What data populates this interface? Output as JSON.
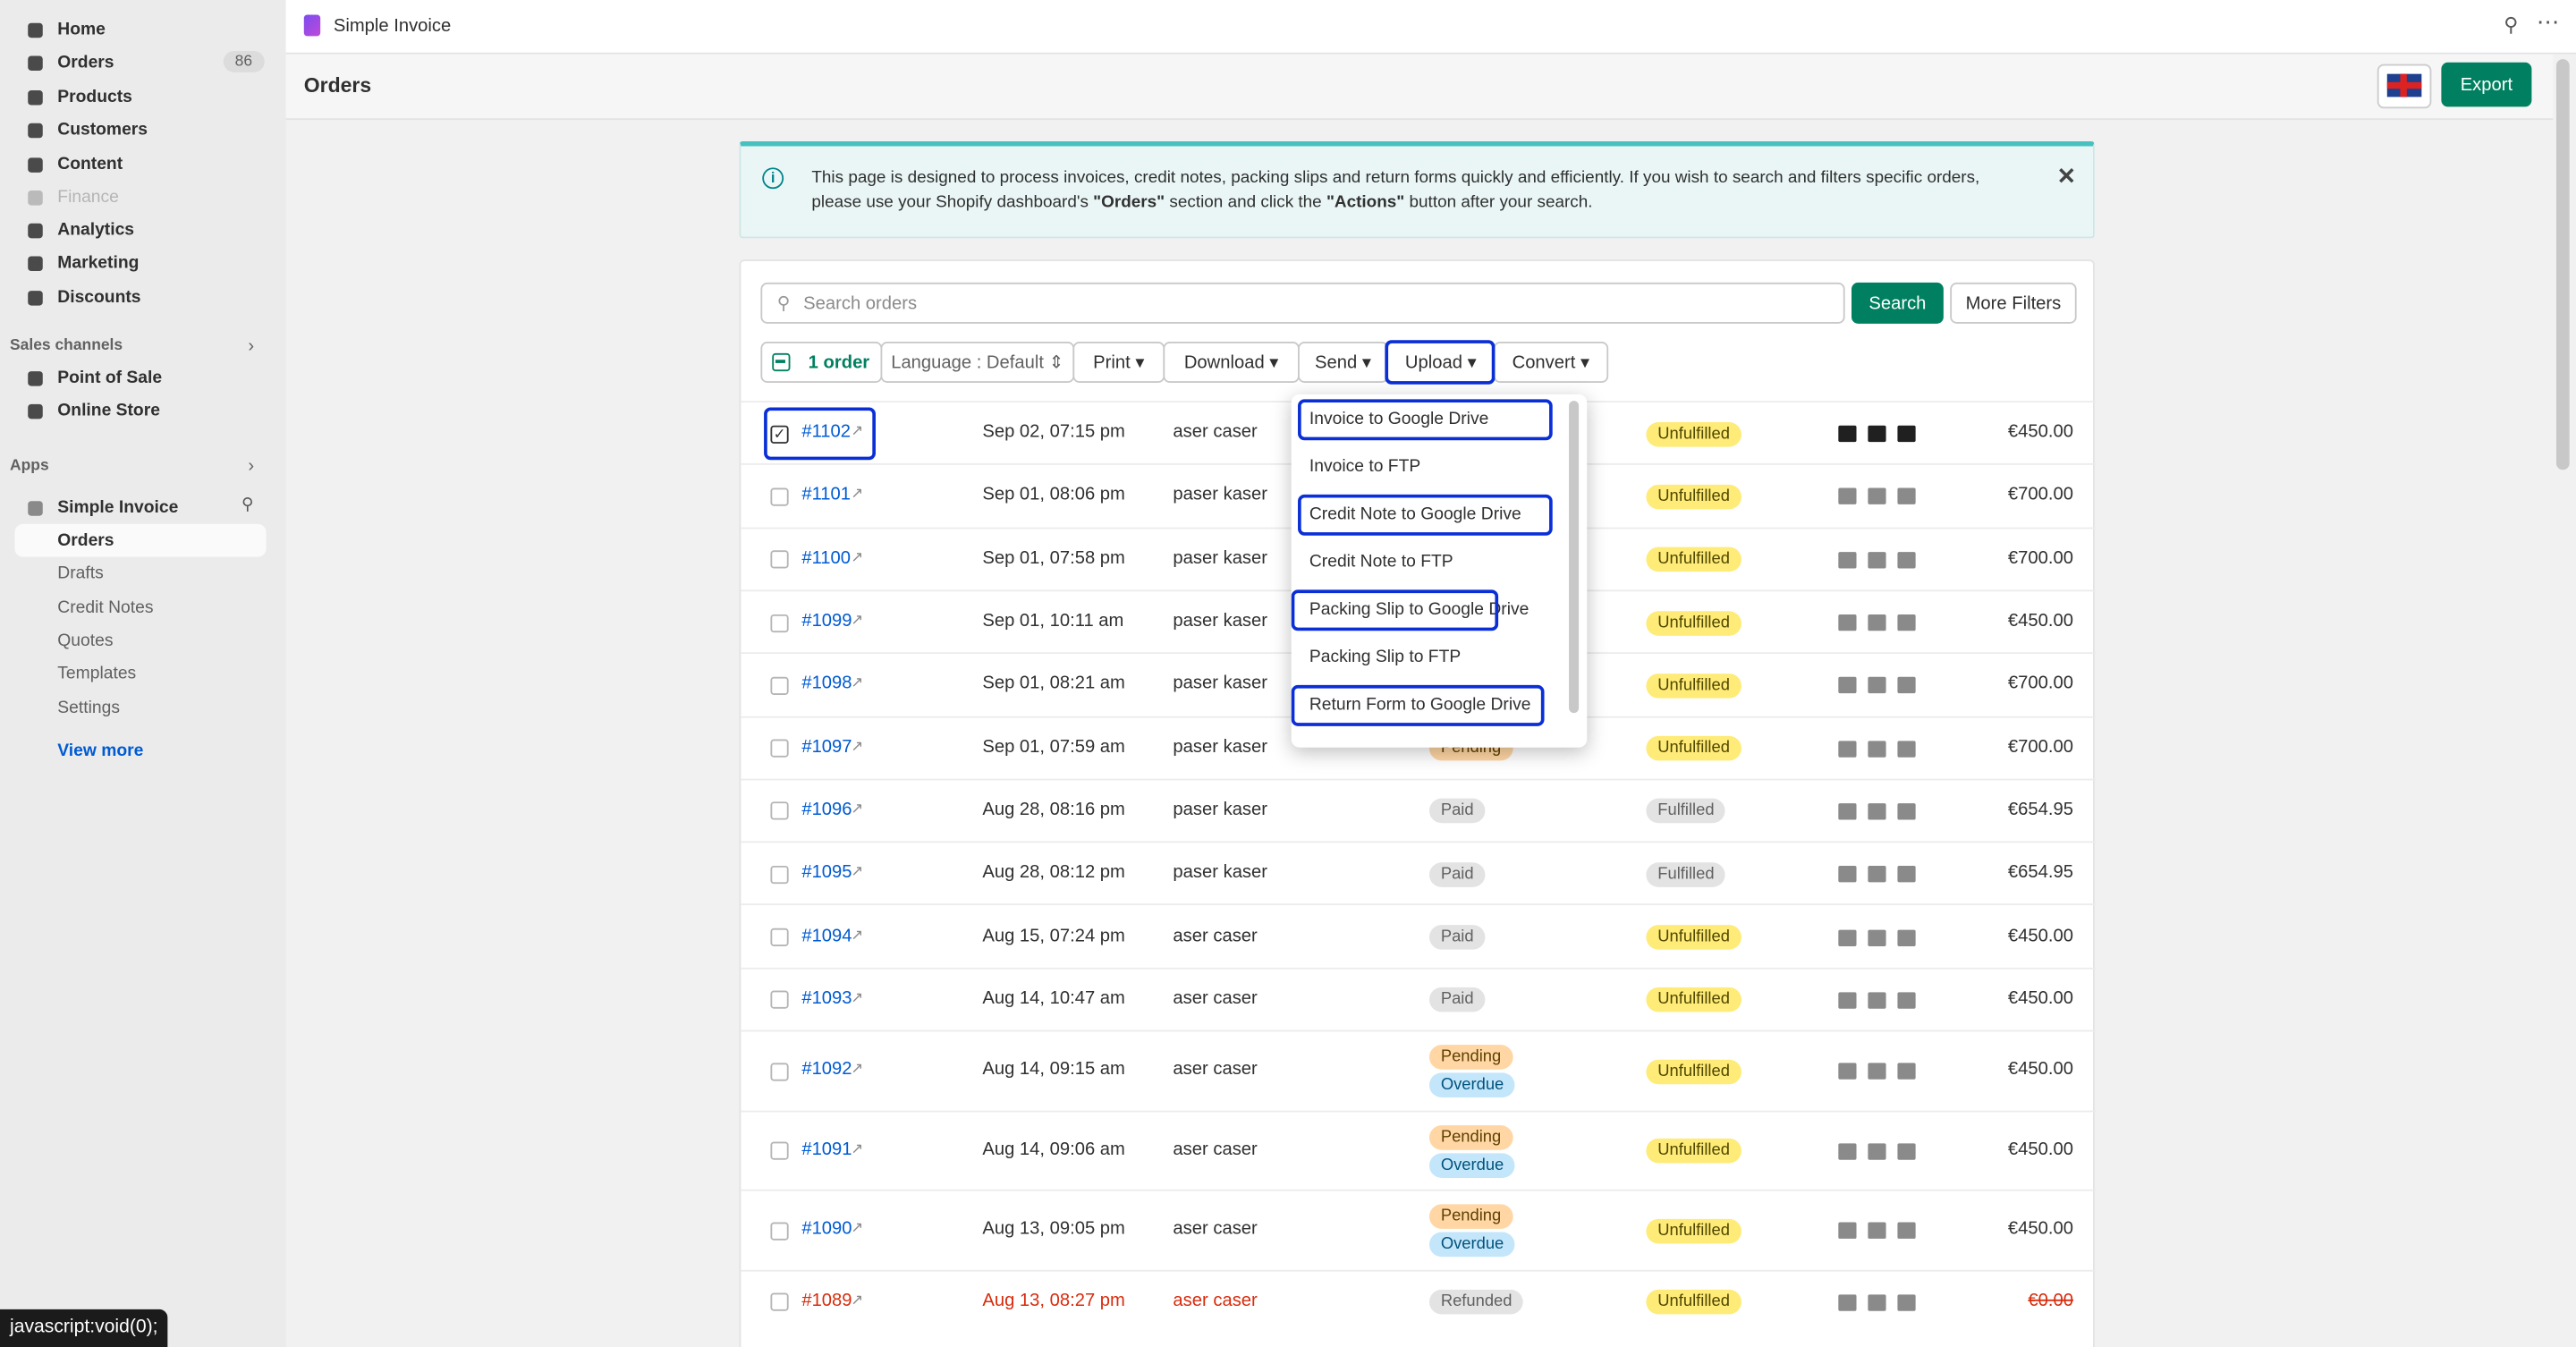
{
  "app": {
    "name": "Simple Invoice"
  },
  "sidebar": {
    "nav": [
      {
        "label": "Home"
      },
      {
        "label": "Orders",
        "badge": 86
      },
      {
        "label": "Products"
      },
      {
        "label": "Customers"
      },
      {
        "label": "Content"
      },
      {
        "label": "Finance"
      },
      {
        "label": "Analytics"
      },
      {
        "label": "Marketing"
      },
      {
        "label": "Discounts"
      }
    ],
    "sales_channels": {
      "title": "Sales channels",
      "items": [
        "Point of Sale",
        "Online Store"
      ]
    },
    "apps": {
      "title": "Apps",
      "app": "Simple Invoice",
      "items": [
        "Orders",
        "Drafts",
        "Credit Notes",
        "Quotes",
        "Templates",
        "Settings"
      ],
      "more": "View more"
    }
  },
  "header": {
    "title": "Orders",
    "export": "Export"
  },
  "banner": {
    "text": "This page is designed to process invoices, credit notes, packing slips and return forms quickly and efficiently. If you wish to search and filters specific orders, please use your Shopify dashboard's ",
    "orders": "\"Orders\"",
    "mid": " section and click the ",
    "actions": "\"Actions\"",
    "end": " button after your search."
  },
  "toolbar": {
    "search_placeholder": "Search orders",
    "search": "Search",
    "more_filters": "More Filters",
    "selected": "1 order",
    "language": "Language : Default",
    "buttons": [
      "Print",
      "Download",
      "Send",
      "Upload",
      "Convert"
    ]
  },
  "upload_menu": [
    "Invoice to Google Drive",
    "Invoice to FTP",
    "Credit Note to Google Drive",
    "Credit Note to FTP",
    "Packing Slip to Google Drive",
    "Packing Slip to FTP",
    "Return Form to Google Drive"
  ],
  "orders": {
    "rows": [
      {
        "id": "#1102",
        "date": "Sep 02, 07:15 pm",
        "customer": "aser caser",
        "payment": [],
        "fulfillment": "Unfulfilled",
        "total": "€450.00"
      },
      {
        "id": "#1101",
        "date": "Sep 01, 08:06 pm",
        "customer": "paser kaser",
        "payment": [],
        "fulfillment": "Unfulfilled",
        "total": "€700.00"
      },
      {
        "id": "#1100",
        "date": "Sep 01, 07:58 pm",
        "customer": "paser kaser",
        "payment": [],
        "fulfillment": "Unfulfilled",
        "total": "€700.00"
      },
      {
        "id": "#1099",
        "date": "Sep 01, 10:11 am",
        "customer": "paser kaser",
        "payment": [],
        "fulfillment": "Unfulfilled",
        "total": "€450.00"
      },
      {
        "id": "#1098",
        "date": "Sep 01, 08:21 am",
        "customer": "paser kaser",
        "payment": [],
        "fulfillment": "Unfulfilled",
        "total": "€700.00"
      },
      {
        "id": "#1097",
        "date": "Sep 01, 07:59 am",
        "customer": "paser kaser",
        "payment": [
          "Pending"
        ],
        "fulfillment": "Unfulfilled",
        "total": "€700.00"
      },
      {
        "id": "#1096",
        "date": "Aug 28, 08:16 pm",
        "customer": "paser kaser",
        "payment": [
          "Paid"
        ],
        "fulfillment": "Fulfilled",
        "total": "€654.95"
      },
      {
        "id": "#1095",
        "date": "Aug 28, 08:12 pm",
        "customer": "paser kaser",
        "payment": [
          "Paid"
        ],
        "fulfillment": "Fulfilled",
        "total": "€654.95"
      },
      {
        "id": "#1094",
        "date": "Aug 15, 07:24 pm",
        "customer": "aser caser",
        "payment": [
          "Paid"
        ],
        "fulfillment": "Unfulfilled",
        "total": "€450.00"
      },
      {
        "id": "#1093",
        "date": "Aug 14, 10:47 am",
        "customer": "aser caser",
        "payment": [
          "Paid"
        ],
        "fulfillment": "Unfulfilled",
        "total": "€450.00"
      },
      {
        "id": "#1092",
        "date": "Aug 14, 09:15 am",
        "customer": "aser caser",
        "payment": [
          "Pending",
          "Overdue"
        ],
        "fulfillment": "Unfulfilled",
        "total": "€450.00"
      },
      {
        "id": "#1091",
        "date": "Aug 14, 09:06 am",
        "customer": "aser caser",
        "payment": [
          "Pending",
          "Overdue"
        ],
        "fulfillment": "Unfulfilled",
        "total": "€450.00"
      },
      {
        "id": "#1090",
        "date": "Aug 13, 09:05 pm",
        "customer": "aser caser",
        "payment": [
          "Pending",
          "Overdue"
        ],
        "fulfillment": "Unfulfilled",
        "total": "€450.00"
      },
      {
        "id": "#1089",
        "date": "Aug 13, 08:27 pm",
        "customer": "aser caser",
        "payment": [
          "Refunded"
        ],
        "fulfillment": "Unfulfilled",
        "total": "€0.00"
      }
    ]
  },
  "status_bar": "javascript:void(0);"
}
